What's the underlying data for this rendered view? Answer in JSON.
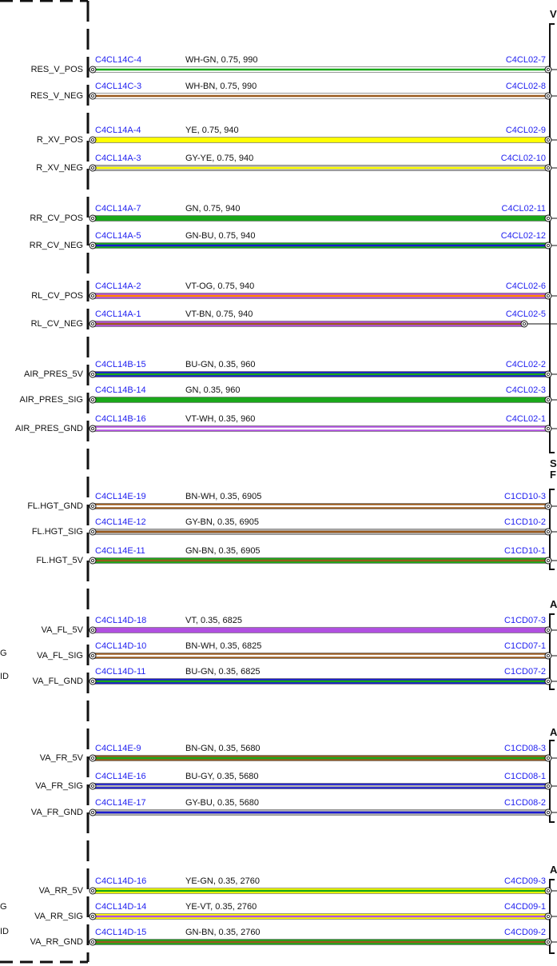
{
  "headers": [
    "V",
    "S",
    "F",
    "A",
    "A",
    "A"
  ],
  "groups": [
    {
      "wires": [
        {
          "signal": "RES_V_POS",
          "from": "C4CL14C-4",
          "spec": "WH-GN,  0.75,  990",
          "to": "C4CL02-7",
          "colors": [
            "#ffffff",
            "#1aa81a"
          ]
        },
        {
          "signal": "RES_V_NEG",
          "from": "C4CL14C-3",
          "spec": "WH-BN,  0.75,  990",
          "to": "C4CL02-8",
          "colors": [
            "#ffffff",
            "#9a5a1e"
          ]
        }
      ]
    },
    {
      "wires": [
        {
          "signal": "R_XV_POS",
          "from": "C4CL14A-4",
          "spec": "YE,  0.75,  940",
          "to": "C4CL02-9",
          "colors": [
            "#ffff00"
          ]
        },
        {
          "signal": "R_XV_NEG",
          "from": "C4CL14A-3",
          "spec": "GY-YE,  0.75,  940",
          "to": "C4CL02-10",
          "colors": [
            "#b0b0b0",
            "#ffff00"
          ]
        }
      ]
    },
    {
      "wires": [
        {
          "signal": "RR_CV_POS",
          "from": "C4CL14A-7",
          "spec": "GN,  0.75,  940",
          "to": "C4CL02-11",
          "colors": [
            "#1aa81a"
          ]
        },
        {
          "signal": "RR_CV_NEG",
          "from": "C4CL14A-5",
          "spec": "GN-BU,  0.75,  940",
          "to": "C4CL02-12",
          "colors": [
            "#1aa81a",
            "#1a1ad0"
          ]
        }
      ]
    },
    {
      "wires": [
        {
          "signal": "RL_CV_POS",
          "from": "C4CL14A-2",
          "spec": "VT-OG,  0.75,  940",
          "to": "C4CL02-6",
          "colors": [
            "#b050e0",
            "#ff8a00"
          ]
        },
        {
          "signal": "RL_CV_NEG",
          "from": "C4CL14A-1",
          "spec": "VT-BN,  0.75,  940",
          "to": "C4CL02-5",
          "colors": [
            "#b050e0",
            "#9a5a1e"
          ]
        }
      ]
    },
    {
      "wires": [
        {
          "signal": "AIR_PRES_5V",
          "from": "C4CL14B-15",
          "spec": "BU-GN,  0.35,  960",
          "to": "C4CL02-2",
          "colors": [
            "#1a1ad0",
            "#1aa81a"
          ]
        },
        {
          "signal": "AIR_PRES_SIG",
          "from": "C4CL14B-14",
          "spec": "GN,  0.35,  960",
          "to": "C4CL02-3",
          "colors": [
            "#1aa81a"
          ]
        },
        {
          "signal": "AIR_PRES_GND",
          "from": "C4CL14B-16",
          "spec": "VT-WH,  0.35,  960",
          "to": "C4CL02-1",
          "colors": [
            "#b050e0",
            "#ffffff"
          ]
        }
      ]
    },
    {
      "wires": [
        {
          "signal": "FL.HGT_GND",
          "from": "C4CL14E-19",
          "spec": "BN-WH,  0.35,  6905",
          "to": "C1CD10-3",
          "colors": [
            "#9a5a1e",
            "#ffffff"
          ]
        },
        {
          "signal": "FL.HGT_SIG",
          "from": "C4CL14E-12",
          "spec": "GY-BN,  0.35,  6905",
          "to": "C1CD10-2",
          "colors": [
            "#b0b0b0",
            "#9a5a1e"
          ]
        },
        {
          "signal": "FL.HGT_5V",
          "from": "C4CL14E-11",
          "spec": "GN-BN,  0.35,  6905",
          "to": "C1CD10-1",
          "colors": [
            "#1aa81a",
            "#9a5a1e"
          ]
        }
      ]
    },
    {
      "wires": [
        {
          "signal": "VA_FL_5V",
          "from": "C4CL14D-18",
          "spec": "VT,  0.35,  6825",
          "to": "C1CD07-3",
          "colors": [
            "#b050e0"
          ]
        },
        {
          "signal": "VA_FL_SIG",
          "from": "C4CL14D-10",
          "spec": "BN-WH,  0.35,  6825",
          "to": "C1CD07-1",
          "colors": [
            "#9a5a1e",
            "#ffffff"
          ]
        },
        {
          "signal": "VA_FL_GND",
          "from": "C4CL14D-11",
          "spec": "BU-GN,  0.35,  6825",
          "to": "C1CD07-2",
          "colors": [
            "#1a1ad0",
            "#1aa81a"
          ]
        }
      ]
    },
    {
      "wires": [
        {
          "signal": "VA_FR_5V",
          "from": "C4CL14E-9",
          "spec": "BN-GN,  0.35,  5680",
          "to": "C1CD08-3",
          "colors": [
            "#9a5a1e",
            "#1aa81a"
          ]
        },
        {
          "signal": "VA_FR_SIG",
          "from": "C4CL14E-16",
          "spec": "BU-GY,  0.35,  5680",
          "to": "C1CD08-1",
          "colors": [
            "#1a1ad0",
            "#b0b0b0"
          ]
        },
        {
          "signal": "VA_FR_GND",
          "from": "C4CL14E-17",
          "spec": "GY-BU,  0.35,  5680",
          "to": "C1CD08-2",
          "colors": [
            "#b0b0b0",
            "#1a1ad0"
          ]
        }
      ]
    },
    {
      "wires": [
        {
          "signal": "VA_RR_5V",
          "from": "C4CL14D-16",
          "spec": "YE-GN,  0.35,  2760",
          "to": "C4CD09-3",
          "colors": [
            "#ffff00",
            "#1aa81a"
          ]
        },
        {
          "signal": "VA_RR_SIG",
          "from": "C4CL14D-14",
          "spec": "YE-VT,  0.35,  2760",
          "to": "C4CD09-1",
          "colors": [
            "#ffff00",
            "#b050e0"
          ]
        },
        {
          "signal": "VA_RR_GND",
          "from": "C4CL14D-15",
          "spec": "GN-BN,  0.35,  2760",
          "to": "C4CD09-2",
          "colors": [
            "#1aa81a",
            "#9a5a1e"
          ]
        }
      ]
    }
  ],
  "left_edge_fragments": [
    "G",
    "ID",
    "G",
    "ID"
  ]
}
